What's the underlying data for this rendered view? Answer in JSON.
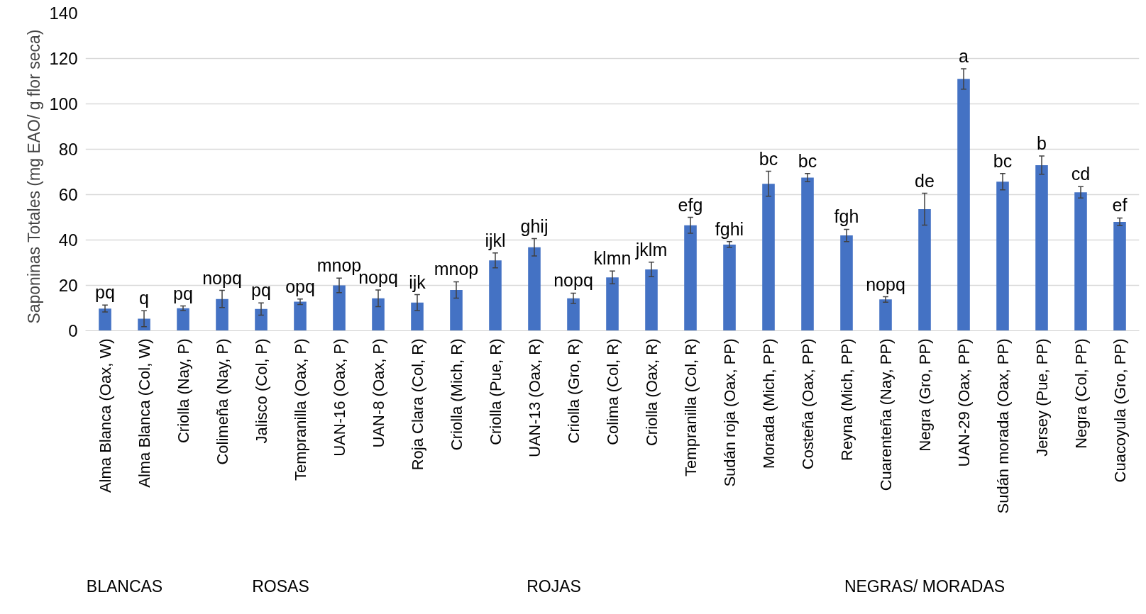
{
  "chart_data": {
    "type": "bar",
    "ylabel": "Saponinas  Totales  (mg EAO/ g flor seca)",
    "categories": [
      "Alma Blanca (Oax, W)",
      "Alma Blanca (Col, W)",
      "Criolla (Nay, P)",
      "Colimeña (Nay, P)",
      "Jalisco (Col, P)",
      "Tempranilla (Oax, P)",
      "UAN-16 (Oax, P)",
      "UAN-8 (Oax, P)",
      "Roja Clara (Col, R)",
      "Criolla (Mich, R)",
      "Criolla (Pue, R)",
      "UAN-13 (Oax, R)",
      "Criolla (Gro, R)",
      "Colima (Col, R)",
      "Criolla (Oax, R)",
      "Tempranilla (Col, R)",
      "Sudán roja (Oax, PP)",
      "Morada (Mich, PP)",
      "Costeña (Oax, PP)",
      "Reyna (Mich, PP)",
      "Cuarenteña (Nay, PP)",
      "Negra (Gro, PP)",
      "UAN-29 (Oax, PP)",
      "Sudán morada (Oax, PP)",
      "Jersey (Pue, PP)",
      "Negra (Col, PP)",
      "Cuacoyula (Gro, PP)"
    ],
    "values": [
      9.8,
      5.3,
      9.9,
      14,
      9.6,
      12.8,
      20,
      14.3,
      12.4,
      18,
      31,
      36.8,
      14.3,
      23.5,
      27,
      46.5,
      38,
      64.8,
      67.5,
      42,
      13.8,
      53.6,
      111,
      65.7,
      73,
      61,
      48
    ],
    "errors": [
      1.5,
      3.5,
      1,
      3.8,
      2.7,
      1.2,
      3.2,
      3.7,
      3.5,
      3.6,
      3.3,
      3.8,
      2.3,
      2.8,
      3.2,
      3.5,
      1.3,
      5.5,
      1.8,
      2.7,
      1.2,
      7,
      4.5,
      3.6,
      4,
      2.5,
      1.7
    ],
    "value_labels": [
      "pq",
      "q",
      "pq",
      "nopq",
      "pq",
      "opq",
      "mnop",
      "nopq",
      "ijk",
      "mnop",
      "ijkl",
      "ghij",
      "nopq",
      "klmn",
      "jklm",
      "efg",
      "fghi",
      "bc",
      "bc",
      "fgh",
      "nopq",
      "de",
      "a",
      "bc",
      "b",
      "cd",
      "ef"
    ],
    "color": "#4472c4",
    "ylim": [
      0,
      140
    ],
    "yticks": [
      0,
      20,
      40,
      60,
      80,
      100,
      120,
      140
    ],
    "grid": "y",
    "annotations": [
      "BLANCAS",
      "ROSAS",
      "ROJAS",
      "NEGRAS/ MORADAS"
    ]
  }
}
